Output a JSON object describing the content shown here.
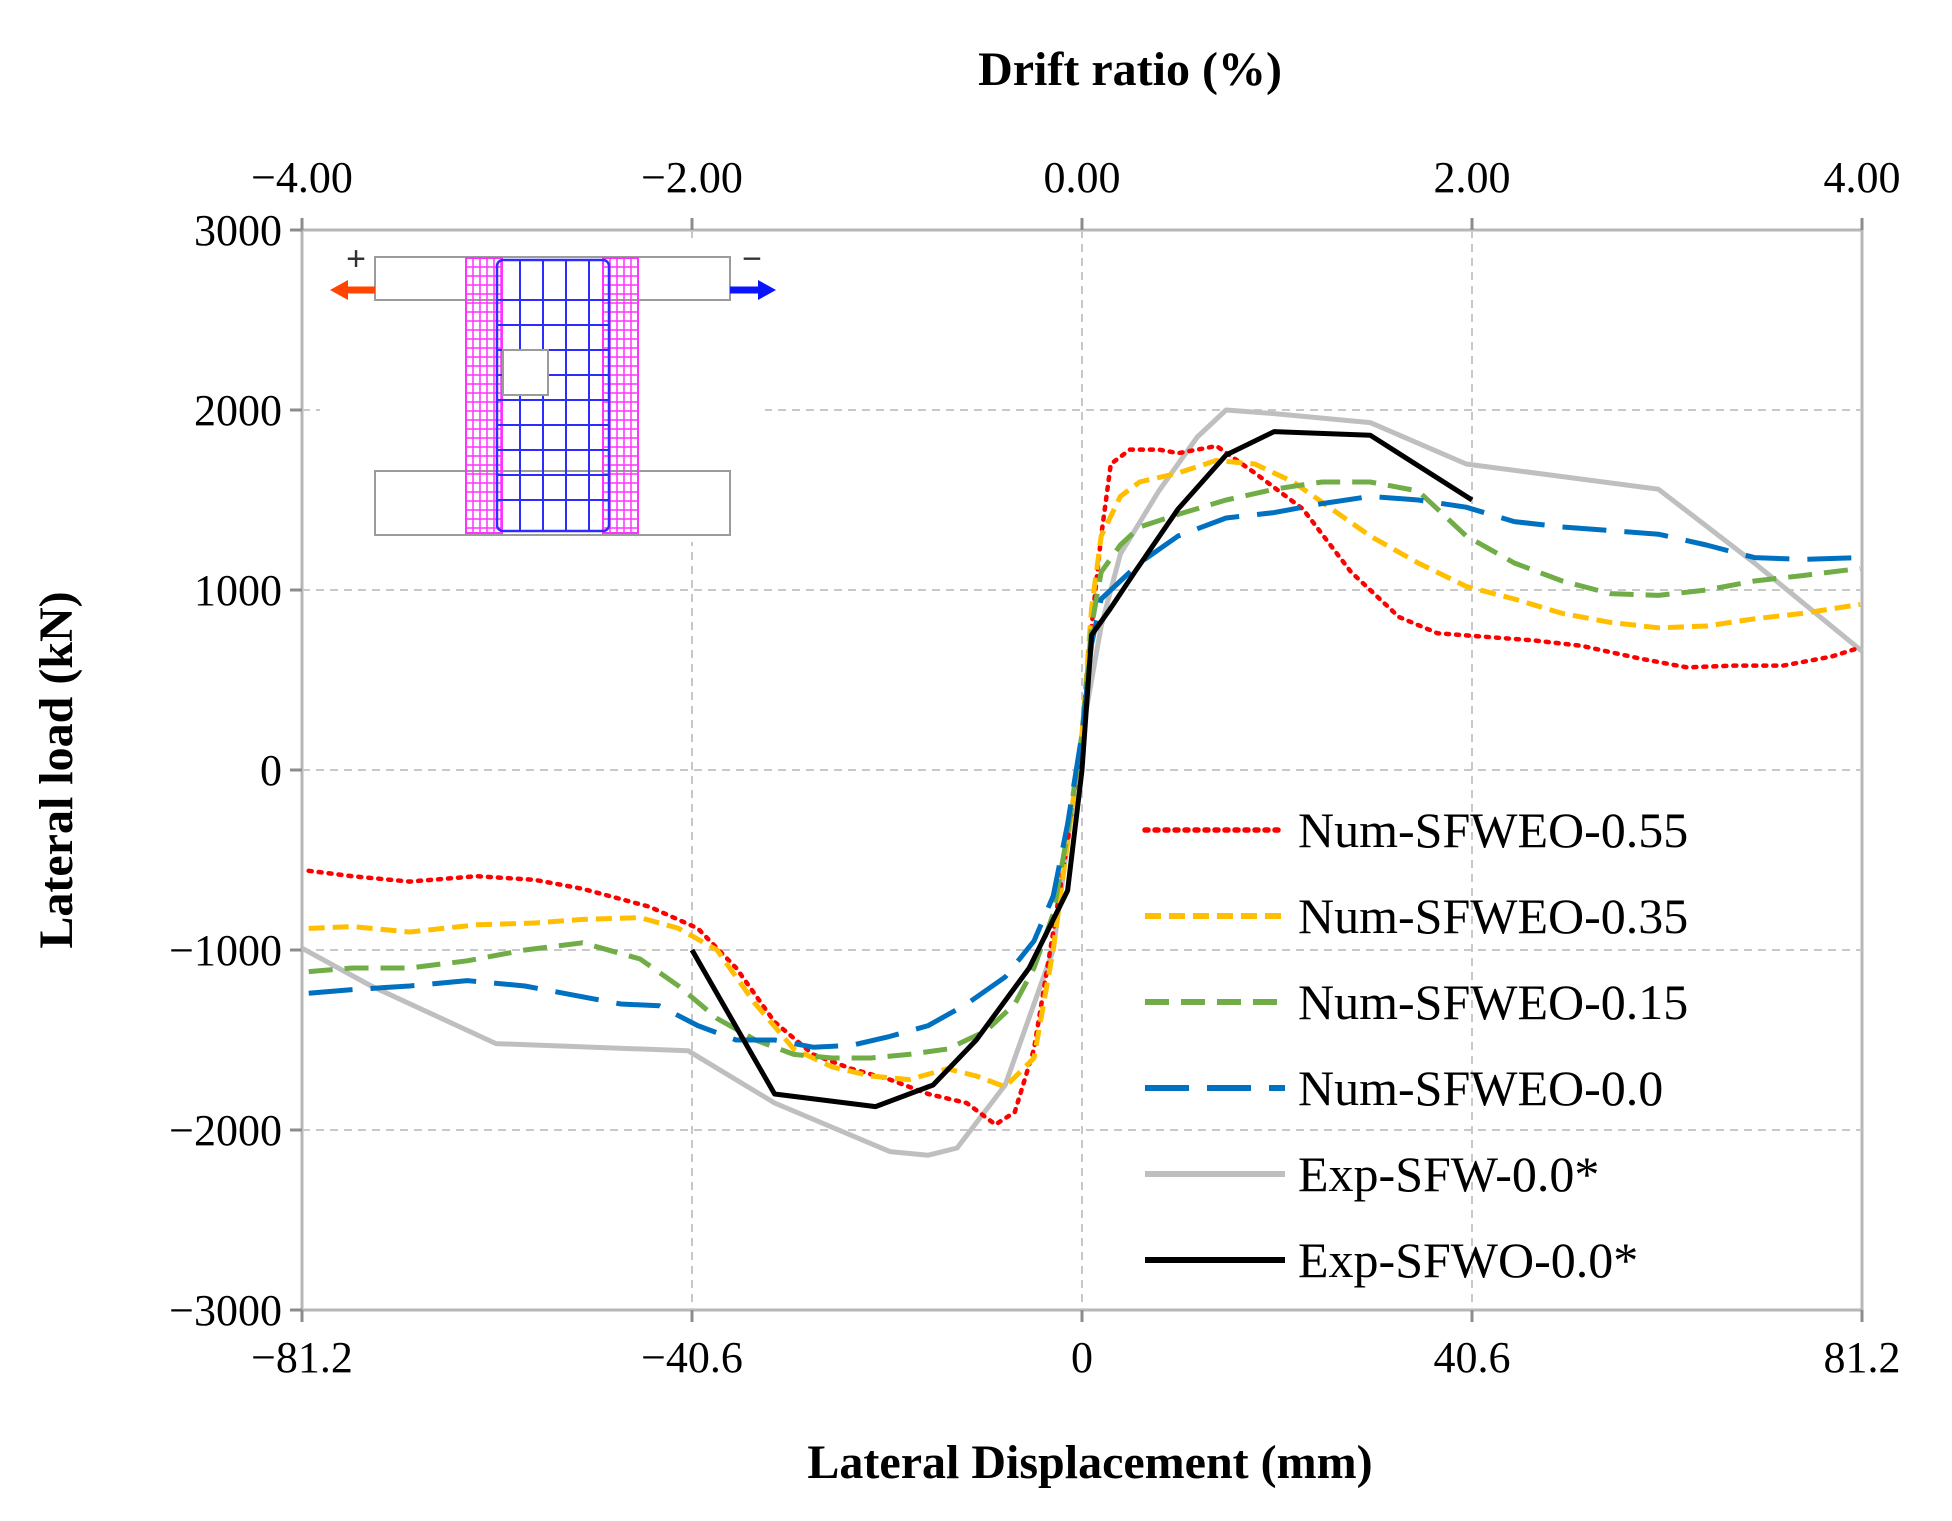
{
  "chart_data": {
    "type": "line",
    "xlabel": "Lateral Displacement (mm)",
    "x2label": "Drift ratio (%)",
    "ylabel": "Lateral load (kN)",
    "xlim": [
      -81.2,
      81.2
    ],
    "x2lim": [
      -4,
      4
    ],
    "ylim": [
      -3000,
      3000
    ],
    "x_ticks": [
      -81.2,
      -40.6,
      0,
      40.6,
      81.2
    ],
    "x_tick_labels": [
      "−81.2",
      "−40.6",
      "0",
      "40.6",
      "81.2"
    ],
    "x2_ticks": [
      -4,
      -2,
      0,
      2,
      4
    ],
    "x2_tick_labels": [
      "−4.00",
      "−2.00",
      "0.00",
      "2.00",
      "4.00"
    ],
    "y_ticks": [
      3000,
      2000,
      1000,
      0,
      -1000,
      -2000,
      -3000
    ],
    "y_tick_labels": [
      "3000",
      "2000",
      "1000",
      "0",
      "−1000",
      "−2000",
      "−3000"
    ],
    "grid": true,
    "legend_position": "bottom-right",
    "inset_labels": {
      "plus": "+",
      "minus": "−"
    },
    "series": [
      {
        "name": "Num-SFWEO-0.55",
        "color": "#ff0000",
        "dash": "dotted",
        "x": [
          -80.5,
          -76,
          -70,
          -63,
          -57,
          -52,
          -45,
          -40,
          -36,
          -32,
          -28,
          -24,
          -20,
          -16,
          -12,
          -9,
          -7,
          -5,
          -3,
          -1.5,
          0,
          1,
          2,
          3,
          5,
          8,
          10,
          14,
          18,
          23,
          28,
          33,
          37,
          42,
          47,
          52,
          58,
          63,
          68,
          73,
          78,
          81
        ],
        "y": [
          -560,
          -590,
          -620,
          -590,
          -610,
          -660,
          -760,
          -880,
          -1100,
          -1400,
          -1580,
          -1660,
          -1720,
          -1800,
          -1850,
          -1970,
          -1900,
          -1550,
          -900,
          -400,
          200,
          800,
          1300,
          1700,
          1780,
          1780,
          1760,
          1800,
          1650,
          1450,
          1100,
          850,
          760,
          740,
          720,
          690,
          620,
          570,
          580,
          580,
          630,
          680
        ]
      },
      {
        "name": "Num-SFWEO-0.35",
        "color": "#ffbf00",
        "dash": "short",
        "x": [
          -80.5,
          -76,
          -70,
          -63,
          -57,
          -52,
          -46,
          -42,
          -38,
          -34,
          -30,
          -26,
          -22,
          -18,
          -14,
          -11,
          -8,
          -5,
          -3,
          -1.5,
          0,
          1,
          2,
          4,
          6,
          10,
          14,
          18,
          22,
          26,
          30,
          35,
          40,
          45,
          50,
          55,
          60,
          65,
          70,
          75,
          81
        ],
        "y": [
          -880,
          -870,
          -900,
          -860,
          -850,
          -830,
          -820,
          -880,
          -1000,
          -1300,
          -1550,
          -1650,
          -1700,
          -1720,
          -1660,
          -1700,
          -1760,
          -1600,
          -1000,
          -400,
          200,
          900,
          1300,
          1520,
          1600,
          1650,
          1720,
          1700,
          1600,
          1450,
          1300,
          1150,
          1020,
          950,
          870,
          820,
          790,
          800,
          840,
          870,
          920
        ]
      },
      {
        "name": "Num-SFWEO-0.15",
        "color": "#70ad47",
        "dash": "medium",
        "x": [
          -80.5,
          -76,
          -70,
          -64,
          -58,
          -52,
          -46,
          -42,
          -38,
          -34,
          -30,
          -26,
          -22,
          -18,
          -14,
          -10,
          -7,
          -5,
          -3,
          -1.5,
          0,
          1,
          2,
          4,
          6,
          10,
          15,
          20,
          25,
          30,
          35,
          40,
          45,
          50,
          55,
          60,
          65,
          70,
          75,
          81
        ],
        "y": [
          -1120,
          -1100,
          -1100,
          -1060,
          -1000,
          -960,
          -1050,
          -1200,
          -1380,
          -1500,
          -1580,
          -1600,
          -1600,
          -1580,
          -1550,
          -1450,
          -1300,
          -1100,
          -800,
          -350,
          200,
          800,
          1100,
          1250,
          1350,
          1420,
          1500,
          1560,
          1600,
          1600,
          1550,
          1300,
          1150,
          1050,
          980,
          970,
          1000,
          1050,
          1080,
          1120
        ]
      },
      {
        "name": "Num-SFWEO-0.0",
        "color": "#0070c0",
        "dash": "long",
        "x": [
          -80.5,
          -76,
          -70,
          -64,
          -58,
          -52,
          -48,
          -44,
          -40,
          -36,
          -32,
          -28,
          -24,
          -20,
          -16,
          -12,
          -8,
          -5,
          -3,
          -1.5,
          0,
          1,
          2,
          4,
          6,
          10,
          15,
          20,
          25,
          30,
          35,
          40,
          45,
          50,
          55,
          60,
          65,
          70,
          75,
          81
        ],
        "y": [
          -1240,
          -1220,
          -1200,
          -1170,
          -1200,
          -1260,
          -1300,
          -1310,
          -1420,
          -1500,
          -1500,
          -1540,
          -1530,
          -1480,
          -1420,
          -1300,
          -1150,
          -950,
          -700,
          -300,
          200,
          700,
          950,
          1050,
          1150,
          1300,
          1400,
          1430,
          1480,
          1520,
          1500,
          1460,
          1380,
          1350,
          1330,
          1310,
          1250,
          1180,
          1170,
          1180
        ]
      },
      {
        "name": "Exp-SFW-0.0*",
        "color": "#bfbfbf",
        "dash": "solid",
        "x": [
          -81.2,
          -74,
          -61,
          -41,
          -32,
          -20,
          -16,
          -13,
          -8,
          -3,
          0,
          2,
          4,
          8,
          12,
          15,
          20,
          30,
          40,
          60,
          70,
          81.2
        ],
        "y": [
          -990,
          -1200,
          -1520,
          -1560,
          -1850,
          -2120,
          -2140,
          -2100,
          -1750,
          -1000,
          200,
          800,
          1200,
          1550,
          1850,
          2000,
          1980,
          1930,
          1700,
          1560,
          1150,
          660
        ]
      },
      {
        "name": "Exp-SFWO-0.0*",
        "color": "#000000",
        "dash": "solid",
        "x": [
          -40.6,
          -32,
          -21.5,
          -15.5,
          -11,
          -5.5,
          -1.5,
          0,
          1,
          3,
          5.5,
          10,
          15,
          20,
          30,
          40.6
        ],
        "y": [
          -1000,
          -1800,
          -1870,
          -1750,
          -1500,
          -1100,
          -670,
          0,
          750,
          900,
          1100,
          1450,
          1750,
          1880,
          1860,
          1500
        ]
      }
    ]
  }
}
